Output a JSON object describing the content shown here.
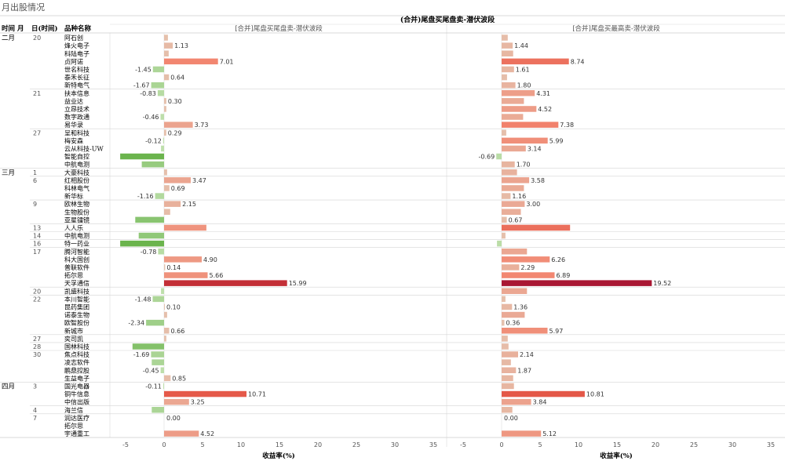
{
  "page_title": "月出股情况",
  "chart_data": {
    "type": "bar",
    "orientation": "horizontal",
    "header": {
      "col_month": "时间 月",
      "col_day": "日(时间)",
      "col_name": "品种名称",
      "super_title": "(合并)尾盘买尾盘卖-潜伏波段"
    },
    "panels": [
      {
        "title": "[合并]尾盘买尾盘卖-潜伏波段",
        "xlabel": "收益率(%)",
        "xlim": [
          -6,
          36
        ],
        "ticks": [
          -5,
          0,
          5,
          10,
          15,
          20,
          25,
          30,
          35
        ]
      },
      {
        "title": "[合并]尾盘买最高卖-潜伏波段",
        "xlabel": "收益率(%)",
        "xlim": [
          -6,
          36
        ],
        "ticks": [
          -5,
          0,
          5,
          10,
          15,
          20,
          25,
          30,
          35
        ]
      }
    ],
    "rows": [
      {
        "month": "二月",
        "day": "20",
        "name": "阿石创",
        "v1": 0.5,
        "v2": 0.8,
        "s1": false,
        "s2": false
      },
      {
        "month": "",
        "day": "",
        "name": "烽火电子",
        "v1": 1.13,
        "v2": 1.44,
        "s1": true,
        "s2": true
      },
      {
        "month": "",
        "day": "",
        "name": "科陆电子",
        "v1": 0.6,
        "v2": 1.5,
        "s1": false,
        "s2": false
      },
      {
        "month": "",
        "day": "",
        "name": "贞阿诺",
        "v1": 7.01,
        "v2": 8.74,
        "s1": true,
        "s2": true
      },
      {
        "month": "",
        "day": "",
        "name": "世名科技",
        "v1": -1.45,
        "v2": 1.61,
        "s1": true,
        "s2": true
      },
      {
        "month": "",
        "day": "",
        "name": "泰禾长征",
        "v1": 0.64,
        "v2": 0.7,
        "s1": true,
        "s2": false
      },
      {
        "month": "",
        "day": "",
        "name": "新特电气",
        "v1": -1.67,
        "v2": 1.8,
        "s1": true,
        "s2": true
      },
      {
        "month": "",
        "day": "21",
        "name": "扶本信息",
        "v1": -0.83,
        "v2": 4.31,
        "s1": true,
        "s2": true
      },
      {
        "month": "",
        "day": "",
        "name": "益业达",
        "v1": 0.3,
        "v2": 2.9,
        "s1": true,
        "s2": false
      },
      {
        "month": "",
        "day": "",
        "name": "立昂技术",
        "v1": 0.3,
        "v2": 4.52,
        "s1": false,
        "s2": true
      },
      {
        "month": "",
        "day": "",
        "name": "数字政通",
        "v1": -0.46,
        "v2": 2.8,
        "s1": true,
        "s2": false
      },
      {
        "month": "",
        "day": "",
        "name": "易华录",
        "v1": 3.73,
        "v2": 7.38,
        "s1": true,
        "s2": true
      },
      {
        "month": "",
        "day": "27",
        "name": "呈和科技",
        "v1": 0.29,
        "v2": 0.6,
        "s1": true,
        "s2": false
      },
      {
        "month": "",
        "day": "",
        "name": "梅安森",
        "v1": -0.12,
        "v2": 5.99,
        "s1": true,
        "s2": true
      },
      {
        "month": "",
        "day": "",
        "name": "云从科技-UW",
        "v1": -0.4,
        "v2": 3.14,
        "s1": false,
        "s2": true
      },
      {
        "month": "",
        "day": "",
        "name": "智能自控",
        "v1": -5.7,
        "v2": -0.69,
        "s1": true,
        "s2": true
      },
      {
        "month": "",
        "day": "",
        "name": "中航电测",
        "v1": -2.9,
        "v2": 1.7,
        "s1": false,
        "s2": true
      },
      {
        "month": "三月",
        "day": "1",
        "name": "大豪科技",
        "v1": 0.4,
        "v2": 2.0,
        "s1": false,
        "s2": false
      },
      {
        "month": "",
        "day": "6",
        "name": "红相股份",
        "v1": 3.47,
        "v2": 3.58,
        "s1": true,
        "s2": true
      },
      {
        "month": "",
        "day": "",
        "name": "科林电气",
        "v1": 0.69,
        "v2": 2.9,
        "s1": true,
        "s2": false
      },
      {
        "month": "",
        "day": "",
        "name": "新华标",
        "v1": -1.16,
        "v2": 1.16,
        "s1": true,
        "s2": true
      },
      {
        "month": "",
        "day": "9",
        "name": "欧林生物",
        "v1": 2.15,
        "v2": 3.0,
        "s1": true,
        "s2": true
      },
      {
        "month": "",
        "day": "",
        "name": "生物股份",
        "v1": 0.8,
        "v2": 2.5,
        "s1": false,
        "s2": false
      },
      {
        "month": "",
        "day": "",
        "name": "亚星镭镜",
        "v1": -3.74,
        "v2": 0.67,
        "s1": true,
        "s2": true
      },
      {
        "month": "",
        "day": "13",
        "name": "人人乐",
        "v1": 5.5,
        "v2": 8.9,
        "s1": false,
        "s2": false
      },
      {
        "month": "",
        "day": "14",
        "name": "中航电测",
        "v1": -3.3,
        "v2": 0.5,
        "s1": false,
        "s2": false
      },
      {
        "month": "",
        "day": "16",
        "name": "特一药业",
        "v1": -5.7,
        "v2": -0.6,
        "s1": false,
        "s2": false
      },
      {
        "month": "",
        "day": "17",
        "name": "腾河智能",
        "v1": -0.78,
        "v2": 3.3,
        "s1": true,
        "s2": false
      },
      {
        "month": "",
        "day": "",
        "name": "科大国创",
        "v1": 4.9,
        "v2": 6.26,
        "s1": true,
        "s2": true
      },
      {
        "month": "",
        "day": "",
        "name": "普联软件",
        "v1": 0.14,
        "v2": 2.29,
        "s1": true,
        "s2": true
      },
      {
        "month": "",
        "day": "",
        "name": "拓尔思",
        "v1": 5.66,
        "v2": 6.89,
        "s1": true,
        "s2": true
      },
      {
        "month": "",
        "day": "",
        "name": "天孚通信",
        "v1": 15.99,
        "v2": 19.52,
        "s1": true,
        "s2": true
      },
      {
        "month": "",
        "day": "20",
        "name": "凯盛科技",
        "v1": -0.4,
        "v2": 3.3,
        "s1": false,
        "s2": false
      },
      {
        "month": "",
        "day": "22",
        "name": "本川智能",
        "v1": -1.48,
        "v2": 0.5,
        "s1": true,
        "s2": false
      },
      {
        "month": "",
        "day": "",
        "name": "昆药集团",
        "v1": 0.1,
        "v2": 1.36,
        "s1": true,
        "s2": true
      },
      {
        "month": "",
        "day": "",
        "name": "诺泰生物",
        "v1": 0.4,
        "v2": 3.0,
        "s1": false,
        "s2": false
      },
      {
        "month": "",
        "day": "",
        "name": "欧智股份",
        "v1": -2.34,
        "v2": 0.36,
        "s1": true,
        "s2": true
      },
      {
        "month": "",
        "day": "",
        "name": "新城市",
        "v1": 0.66,
        "v2": 5.97,
        "s1": true,
        "s2": true
      },
      {
        "month": "",
        "day": "27",
        "name": "奕司凯",
        "v1": 0.3,
        "v2": 0.8,
        "s1": false,
        "s2": false
      },
      {
        "month": "",
        "day": "28",
        "name": "国林科技",
        "v1": -4.1,
        "v2": 0.9,
        "s1": false,
        "s2": false
      },
      {
        "month": "",
        "day": "30",
        "name": "焦点科技",
        "v1": -1.69,
        "v2": 2.14,
        "s1": true,
        "s2": true
      },
      {
        "month": "",
        "day": "",
        "name": "凌志软件",
        "v1": -1.6,
        "v2": 1.2,
        "s1": false,
        "s2": false
      },
      {
        "month": "",
        "day": "",
        "name": "鹏鼎控股",
        "v1": -0.45,
        "v2": 1.87,
        "s1": true,
        "s2": true
      },
      {
        "month": "",
        "day": "",
        "name": "生益电子",
        "v1": 0.85,
        "v2": 1.5,
        "s1": true,
        "s2": false
      },
      {
        "month": "四月",
        "day": "3",
        "name": "国光电器",
        "v1": -0.11,
        "v2": 1.6,
        "s1": true,
        "s2": false
      },
      {
        "month": "",
        "day": "",
        "name": "铜牛信息",
        "v1": 10.71,
        "v2": 10.81,
        "s1": true,
        "s2": true
      },
      {
        "month": "",
        "day": "",
        "name": "中信出版",
        "v1": 3.25,
        "v2": 3.84,
        "s1": true,
        "s2": true
      },
      {
        "month": "",
        "day": "4",
        "name": "海兰信",
        "v1": -1.6,
        "v2": 1.4,
        "s1": false,
        "s2": false
      },
      {
        "month": "",
        "day": "7",
        "name": "润达医疗",
        "v1": 0.0,
        "v2": 0.0,
        "s1": true,
        "s2": true
      },
      {
        "month": "",
        "day": "",
        "name": "拓尔思",
        "v1": 0.0,
        "v2": 0.0,
        "s1": false,
        "s2": false
      },
      {
        "month": "",
        "day": "",
        "name": "宇通重工",
        "v1": 4.52,
        "v2": 5.12,
        "s1": true,
        "s2": true
      }
    ]
  }
}
